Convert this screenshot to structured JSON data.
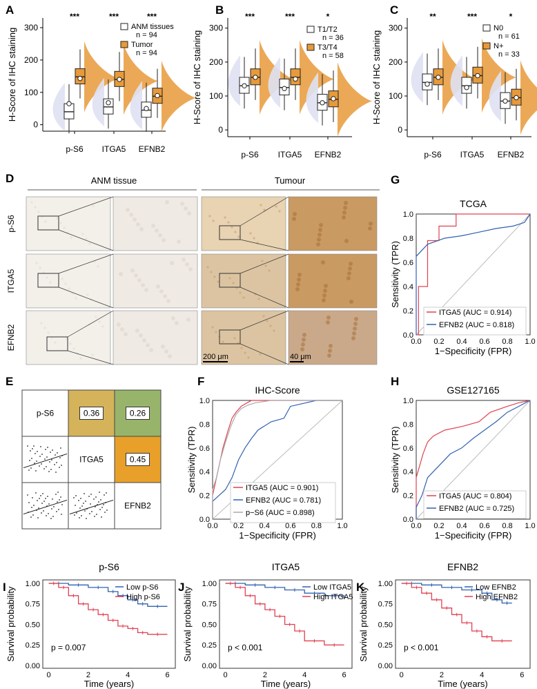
{
  "panels": {
    "A": {
      "label": "A",
      "ylabel": "H-Score of IHC staining",
      "yticks": [
        "0",
        "100",
        "200",
        "300"
      ],
      "cats": [
        "p-S6",
        "ITGA5",
        "EFNB2"
      ],
      "sig": [
        "***",
        "***",
        "***"
      ],
      "legend": [
        {
          "name": "ANM tissues",
          "n": "n = 94"
        },
        {
          "name": "Tumor",
          "n": "n = 94"
        }
      ]
    },
    "B": {
      "label": "B",
      "ylabel": "H-Score of IHC staining",
      "yticks": [
        "0",
        "100",
        "200",
        "300"
      ],
      "cats": [
        "p-S6",
        "ITGA5",
        "EFNB2"
      ],
      "sig": [
        "***",
        "***",
        "*"
      ],
      "legend": [
        {
          "name": "T1/T2",
          "n": "n = 36"
        },
        {
          "name": "T3/T4",
          "n": "n = 58"
        }
      ]
    },
    "C": {
      "label": "C",
      "ylabel": "H-Score of IHC staining",
      "yticks": [
        "0",
        "100",
        "200",
        "300"
      ],
      "cats": [
        "p-S6",
        "ITGA5",
        "EFNB2"
      ],
      "sig": [
        "**",
        "***",
        "*"
      ],
      "legend": [
        {
          "name": "N0",
          "n": "n = 61"
        },
        {
          "name": "N+",
          "n": "n = 33"
        }
      ]
    },
    "D": {
      "label": "D",
      "group1": "ANM tissue",
      "group2": "Tumour",
      "rows": [
        "p-S6",
        "ITGA5",
        "EFNB2"
      ],
      "scale1": "200 μm",
      "scale2": "40 μm"
    },
    "E": {
      "label": "E",
      "diag": [
        "p-S6",
        "ITGA5",
        "EFNB2"
      ],
      "corr": [
        "0.36",
        "0.26",
        "0.45"
      ]
    },
    "F": {
      "label": "F",
      "title": "IHC-Score",
      "xlabel": "1−Specificity (FPR)",
      "ylabel": "Sensitivity (TPR)",
      "ticks": [
        "0.0",
        "0.2",
        "0.4",
        "0.6",
        "0.8",
        "1.0"
      ],
      "legend": [
        "ITGA5 (AUC = 0.901)",
        "EFNB2 (AUC = 0.781)",
        "p−S6 (AUC = 0.898)"
      ]
    },
    "G": {
      "label": "G",
      "title": "TCGA",
      "xlabel": "1−Specificity (FPR)",
      "ylabel": "Sensitivity (TPR)",
      "ticks": [
        "0.0",
        "0.2",
        "0.4",
        "0.6",
        "0.8",
        "1.0"
      ],
      "legend": [
        "ITGA5 (AUC = 0.914)",
        "EFNB2 (AUC = 0.818)"
      ]
    },
    "H": {
      "label": "H",
      "title": "GSE127165",
      "xlabel": "1−Specificity (FPR)",
      "ylabel": "Sensitivity (TPR)",
      "ticks": [
        "0.0",
        "0.2",
        "0.4",
        "0.6",
        "0.8",
        "1.0"
      ],
      "legend": [
        "ITGA5 (AUC = 0.804)",
        "EFNB2 (AUC = 0.725)"
      ]
    },
    "I": {
      "label": "I",
      "title": "p-S6",
      "xlabel": "Time (years)",
      "ylabel": "Survival probability",
      "yticks": [
        "0.00",
        "0.25",
        "0.50",
        "0.75",
        "1.00"
      ],
      "xticks": [
        "0",
        "2",
        "4",
        "6"
      ],
      "legend": [
        "Low p-S6",
        "High p-S6"
      ],
      "p": "p = 0.007"
    },
    "J": {
      "label": "J",
      "title": "ITGA5",
      "xlabel": "Time (years)",
      "ylabel": "Survival probability",
      "yticks": [
        "0.00",
        "0.25",
        "0.50",
        "0.75",
        "1.00"
      ],
      "xticks": [
        "0",
        "2",
        "4",
        "6"
      ],
      "legend": [
        "Low ITGA5",
        "High ITGA5"
      ],
      "p": "p < 0.001"
    },
    "K": {
      "label": "K",
      "title": "EFNB2",
      "xlabel": "Time (years)",
      "ylabel": "Survival probability",
      "yticks": [
        "0.00",
        "0.25",
        "0.50",
        "0.75",
        "1.00"
      ],
      "xticks": [
        "0",
        "2",
        "4",
        "6"
      ],
      "legend": [
        "Low EFNB2",
        "High EFNB2"
      ],
      "p": "p < 0.001"
    }
  },
  "colors": {
    "normal": "#dfe1f3",
    "tumor": "#e89a3a",
    "red": "#e04050",
    "blue": "#3060b0",
    "grey": "#aaaaaa"
  },
  "chart_data": [
    {
      "type": "box",
      "panel": "A",
      "categories": [
        "p-S6",
        "ITGA5",
        "EFNB2"
      ],
      "series": [
        {
          "name": "ANM tissues",
          "median": [
            40,
            55,
            45
          ],
          "mean": [
            65,
            68,
            50
          ]
        },
        {
          "name": "Tumor",
          "median": [
            148,
            140,
            88
          ],
          "mean": [
            143,
            140,
            90
          ]
        }
      ],
      "ylim": [
        -20,
        330
      ]
    },
    {
      "type": "box",
      "panel": "B",
      "categories": [
        "p-S6",
        "ITGA5",
        "EFNB2"
      ],
      "series": [
        {
          "name": "T1/T2",
          "median": [
            130,
            125,
            80
          ],
          "mean": [
            130,
            122,
            80
          ]
        },
        {
          "name": "T3/T4",
          "median": [
            155,
            155,
            90
          ],
          "mean": [
            155,
            150,
            92
          ]
        }
      ],
      "ylim": [
        -20,
        330
      ]
    },
    {
      "type": "box",
      "panel": "C",
      "categories": [
        "p-S6",
        "ITGA5",
        "EFNB2"
      ],
      "series": [
        {
          "name": "N0",
          "median": [
            140,
            130,
            85
          ],
          "mean": [
            135,
            125,
            85
          ]
        },
        {
          "name": "N+",
          "median": [
            155,
            160,
            95
          ],
          "mean": [
            155,
            160,
            95
          ]
        }
      ],
      "ylim": [
        -20,
        330
      ]
    },
    {
      "type": "line",
      "panel": "F",
      "xlim": [
        0,
        1
      ],
      "ylim": [
        0,
        1
      ],
      "series": [
        {
          "name": "ITGA5",
          "x": [
            0,
            0,
            0.02,
            0.05,
            0.08,
            0.12,
            0.15,
            0.18,
            0.22,
            0.25,
            0.3,
            0.4,
            0.6,
            1
          ],
          "y": [
            0,
            0.2,
            0.3,
            0.45,
            0.6,
            0.75,
            0.85,
            0.9,
            0.95,
            0.97,
            1,
            1,
            1,
            1
          ]
        },
        {
          "name": "EFNB2",
          "x": [
            0,
            0,
            0.05,
            0.1,
            0.15,
            0.2,
            0.25,
            0.3,
            0.35,
            0.45,
            0.55,
            0.6,
            0.8,
            1
          ],
          "y": [
            0,
            0.15,
            0.2,
            0.25,
            0.35,
            0.5,
            0.6,
            0.68,
            0.75,
            0.82,
            0.85,
            0.95,
            1,
            1
          ]
        },
        {
          "name": "p-S6",
          "x": [
            0,
            0,
            0.03,
            0.06,
            0.1,
            0.14,
            0.18,
            0.22,
            0.27,
            0.33,
            0.45,
            0.7,
            1
          ],
          "y": [
            0,
            0.25,
            0.35,
            0.5,
            0.65,
            0.78,
            0.88,
            0.93,
            0.96,
            0.98,
            1,
            1,
            1
          ]
        }
      ]
    },
    {
      "type": "line",
      "panel": "G",
      "xlim": [
        0,
        1
      ],
      "ylim": [
        0,
        1
      ],
      "series": [
        {
          "name": "ITGA5",
          "x": [
            0,
            0.02,
            0.02,
            0.1,
            0.1,
            0.2,
            0.2,
            0.35,
            0.35,
            1
          ],
          "y": [
            0,
            0,
            0.4,
            0.4,
            0.78,
            0.78,
            0.9,
            0.9,
            1,
            1
          ]
        },
        {
          "name": "EFNB2",
          "x": [
            0,
            0,
            0.1,
            0.25,
            0.4,
            0.55,
            0.7,
            0.85,
            0.95,
            1
          ],
          "y": [
            0,
            0.65,
            0.75,
            0.8,
            0.82,
            0.85,
            0.88,
            0.9,
            0.93,
            1
          ]
        }
      ]
    },
    {
      "type": "line",
      "panel": "H",
      "xlim": [
        0,
        1
      ],
      "ylim": [
        0,
        1
      ],
      "series": [
        {
          "name": "ITGA5",
          "x": [
            0,
            0,
            0.03,
            0.06,
            0.1,
            0.15,
            0.25,
            0.4,
            0.55,
            0.65,
            0.8,
            0.9,
            1
          ],
          "y": [
            0,
            0.35,
            0.45,
            0.55,
            0.65,
            0.7,
            0.75,
            0.78,
            0.82,
            0.9,
            0.95,
            0.98,
            1
          ]
        },
        {
          "name": "EFNB2",
          "x": [
            0,
            0,
            0.05,
            0.1,
            0.2,
            0.3,
            0.4,
            0.5,
            0.6,
            0.7,
            0.8,
            0.9,
            1
          ],
          "y": [
            0,
            0.1,
            0.2,
            0.35,
            0.45,
            0.55,
            0.6,
            0.68,
            0.75,
            0.82,
            0.9,
            0.95,
            1
          ]
        }
      ]
    },
    {
      "type": "line",
      "panel": "I",
      "xlim": [
        -0.3,
        6.4
      ],
      "ylim": [
        0,
        1
      ],
      "series": [
        {
          "name": "Low p-S6",
          "x": [
            0,
            1,
            2,
            3,
            3.5,
            4,
            4.5,
            5,
            6
          ],
          "y": [
            1,
            0.98,
            0.95,
            0.9,
            0.85,
            0.8,
            0.75,
            0.72,
            0.72
          ]
        },
        {
          "name": "High p-S6",
          "x": [
            0,
            0.5,
            1,
            1.5,
            2,
            2.5,
            3,
            3.5,
            4,
            4.5,
            5,
            6
          ],
          "y": [
            1,
            0.95,
            0.85,
            0.75,
            0.68,
            0.62,
            0.55,
            0.48,
            0.45,
            0.4,
            0.38,
            0.38
          ]
        }
      ]
    },
    {
      "type": "line",
      "panel": "J",
      "xlim": [
        -0.3,
        6.4
      ],
      "ylim": [
        0,
        1
      ],
      "series": [
        {
          "name": "Low ITGA5",
          "x": [
            0,
            1,
            2,
            3,
            4,
            5,
            6
          ],
          "y": [
            1,
            0.98,
            0.95,
            0.92,
            0.88,
            0.85,
            0.82
          ]
        },
        {
          "name": "High ITGA5",
          "x": [
            0,
            0.5,
            1,
            1.5,
            2,
            2.5,
            3,
            3.5,
            4,
            5,
            6
          ],
          "y": [
            1,
            0.95,
            0.85,
            0.75,
            0.68,
            0.6,
            0.5,
            0.42,
            0.3,
            0.25,
            0.25
          ]
        }
      ]
    },
    {
      "type": "line",
      "panel": "K",
      "xlim": [
        -0.3,
        6.4
      ],
      "ylim": [
        0,
        1
      ],
      "series": [
        {
          "name": "Low EFNB2",
          "x": [
            0,
            1,
            2,
            3,
            4,
            4.5,
            5,
            5.5
          ],
          "y": [
            1,
            0.98,
            0.95,
            0.92,
            0.88,
            0.8,
            0.76,
            0.76
          ]
        },
        {
          "name": "High EFNB2",
          "x": [
            0,
            0.5,
            1,
            1.5,
            2,
            2.5,
            3,
            3.5,
            4,
            4.5,
            5.5
          ],
          "y": [
            1,
            0.95,
            0.88,
            0.8,
            0.7,
            0.62,
            0.52,
            0.42,
            0.35,
            0.3,
            0.3
          ]
        }
      ]
    },
    {
      "type": "scatter",
      "panel": "E",
      "note": "correlation matrix",
      "pairs": [
        {
          "a": "p-S6",
          "b": "ITGA5",
          "r": 0.36
        },
        {
          "a": "p-S6",
          "b": "EFNB2",
          "r": 0.26
        },
        {
          "a": "ITGA5",
          "b": "EFNB2",
          "r": 0.45
        }
      ]
    }
  ]
}
